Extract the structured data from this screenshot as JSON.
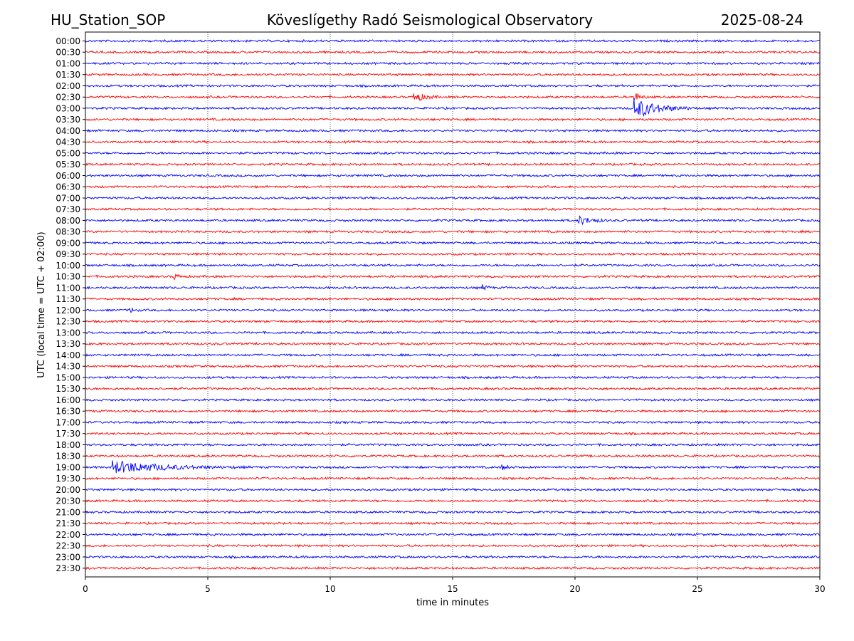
{
  "header": {
    "station": "HU_Station_SOP",
    "observatory": "Köveslígethy Radó Seismological Observatory",
    "date": "2025-08-24"
  },
  "chart_data": {
    "type": "line",
    "title": "Köveslígethy Radó Seismological Observatory",
    "xlabel": "time in minutes",
    "ylabel": "UTC (local time = UTC + 02:00)",
    "xlim": [
      0,
      30
    ],
    "x_ticks": [
      "0",
      "5",
      "10",
      "15",
      "20",
      "25",
      "30"
    ],
    "grid": "vertical dotted lines at x ticks",
    "colors": {
      "even": "#0000ff",
      "odd": "#ff0000"
    },
    "rows": [
      "00:00",
      "00:30",
      "01:00",
      "01:30",
      "02:00",
      "02:30",
      "03:00",
      "03:30",
      "04:00",
      "04:30",
      "05:00",
      "05:30",
      "06:00",
      "06:30",
      "07:00",
      "07:30",
      "08:00",
      "08:30",
      "09:00",
      "09:30",
      "10:00",
      "10:30",
      "11:00",
      "11:30",
      "12:00",
      "12:30",
      "13:00",
      "13:30",
      "14:00",
      "14:30",
      "15:00",
      "15:30",
      "16:00",
      "16:30",
      "17:00",
      "17:30",
      "18:00",
      "18:30",
      "19:00",
      "19:30",
      "20:00",
      "20:30",
      "21:00",
      "21:30",
      "22:00",
      "22:30",
      "23:00",
      "23:30"
    ],
    "events": [
      {
        "row": "02:30",
        "start": 13.4,
        "end": 14.6,
        "amp": 2.6
      },
      {
        "row": "02:30",
        "start": 22.4,
        "end": 23.0,
        "amp": 2.5
      },
      {
        "row": "03:00",
        "start": 22.4,
        "end": 25.0,
        "amp": 5.0
      },
      {
        "row": "08:00",
        "start": 20.1,
        "end": 21.8,
        "amp": 2.0
      },
      {
        "row": "10:30",
        "start": 3.6,
        "end": 4.2,
        "amp": 1.6
      },
      {
        "row": "11:00",
        "start": 16.2,
        "end": 16.8,
        "amp": 1.5
      },
      {
        "row": "12:00",
        "start": 1.8,
        "end": 2.4,
        "amp": 1.2
      },
      {
        "row": "19:00",
        "start": 1.1,
        "end": 6.8,
        "amp": 3.0
      },
      {
        "row": "19:00",
        "start": 17.0,
        "end": 17.8,
        "amp": 1.2
      }
    ]
  }
}
